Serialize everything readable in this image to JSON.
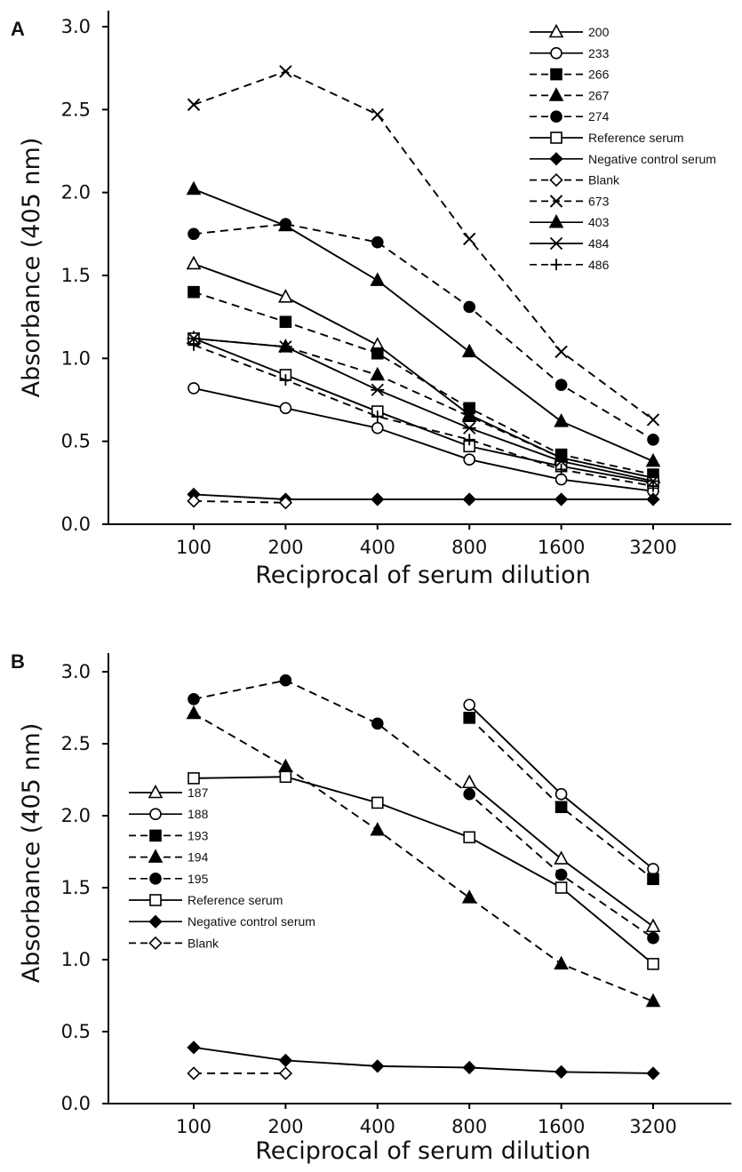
{
  "chart_data": [
    {
      "panel": "A",
      "type": "line",
      "x_scale": "log2",
      "categories": [
        "100",
        "200",
        "400",
        "800",
        "1600",
        "3200"
      ],
      "x": [
        100,
        200,
        400,
        800,
        1600,
        3200
      ],
      "xlabel": "Reciprocal of serum dilution",
      "ylabel": "Absorbance (405 nm)",
      "ylim": [
        0.0,
        3.0
      ],
      "yticks": [
        "0.0",
        "0.5",
        "1.0",
        "1.5",
        "2.0",
        "2.5",
        "3.0"
      ],
      "grid": false,
      "legend_position": "top-right",
      "series": [
        {
          "name": "200",
          "marker": "triangle-open",
          "dash": "solid",
          "values": [
            1.57,
            1.37,
            1.08,
            0.66,
            0.4,
            0.28
          ]
        },
        {
          "name": "233",
          "marker": "circle-open",
          "dash": "solid",
          "values": [
            0.82,
            0.7,
            0.58,
            0.39,
            0.27,
            0.2
          ]
        },
        {
          "name": "266",
          "marker": "square-filled",
          "dash": "dashed",
          "values": [
            1.4,
            1.22,
            1.03,
            0.7,
            0.42,
            0.3
          ]
        },
        {
          "name": "267",
          "marker": "triangle-filled",
          "dash": "dashed",
          "values": [
            1.12,
            1.07,
            0.9,
            0.65,
            0.4,
            0.28
          ]
        },
        {
          "name": "274",
          "marker": "circle-filled",
          "dash": "dashed",
          "values": [
            1.75,
            1.81,
            1.7,
            1.31,
            0.84,
            0.51
          ]
        },
        {
          "name": "Reference serum",
          "marker": "square-open",
          "dash": "solid",
          "values": [
            1.12,
            0.9,
            0.68,
            0.47,
            0.35,
            0.25
          ]
        },
        {
          "name": "Negative control serum",
          "marker": "diamond-filled",
          "dash": "solid",
          "values": [
            0.18,
            0.15,
            0.15,
            0.15,
            0.15,
            0.15
          ]
        },
        {
          "name": "Blank",
          "marker": "diamond-open",
          "dash": "dashed",
          "values": [
            0.14,
            0.13,
            null,
            null,
            null,
            null
          ]
        },
        {
          "name": "673",
          "marker": "x",
          "dash": "dashed",
          "values": [
            2.53,
            2.73,
            2.47,
            1.72,
            1.04,
            0.63
          ]
        },
        {
          "name": "403",
          "marker": "triangle-filled",
          "dash": "solid",
          "values": [
            2.02,
            1.8,
            1.47,
            1.04,
            0.62,
            0.38
          ]
        },
        {
          "name": "484",
          "marker": "asterisk",
          "dash": "solid",
          "values": [
            1.12,
            1.07,
            0.81,
            0.58,
            0.38,
            0.26
          ]
        },
        {
          "name": "486",
          "marker": "plus",
          "dash": "dashed",
          "values": [
            1.08,
            0.87,
            0.65,
            0.51,
            0.33,
            0.23
          ]
        }
      ]
    },
    {
      "panel": "B",
      "type": "line",
      "x_scale": "log2",
      "categories": [
        "100",
        "200",
        "400",
        "800",
        "1600",
        "3200"
      ],
      "x": [
        100,
        200,
        400,
        800,
        1600,
        3200
      ],
      "xlabel": "Reciprocal of serum dilution",
      "ylabel": "Absorbance (405 nm)",
      "ylim": [
        0.0,
        3.0
      ],
      "yticks": [
        "0.0",
        "0.5",
        "1.0",
        "1.5",
        "2.0",
        "2.5",
        "3.0"
      ],
      "grid": false,
      "legend_position": "middle-left",
      "series": [
        {
          "name": "187",
          "marker": "triangle-open",
          "dash": "solid",
          "values": [
            null,
            null,
            null,
            2.23,
            1.7,
            1.23
          ]
        },
        {
          "name": "188",
          "marker": "circle-open",
          "dash": "solid",
          "values": [
            null,
            null,
            null,
            2.77,
            2.15,
            1.63
          ]
        },
        {
          "name": "193",
          "marker": "square-filled",
          "dash": "dashed",
          "values": [
            null,
            null,
            null,
            2.68,
            2.06,
            1.56
          ]
        },
        {
          "name": "194",
          "marker": "triangle-filled",
          "dash": "dashed",
          "values": [
            2.71,
            2.34,
            1.9,
            1.43,
            0.97,
            0.71
          ]
        },
        {
          "name": "195",
          "marker": "circle-filled",
          "dash": "dashed",
          "values": [
            2.81,
            2.94,
            2.64,
            2.15,
            1.59,
            1.15
          ]
        },
        {
          "name": "Reference serum",
          "marker": "square-open",
          "dash": "solid",
          "values": [
            2.26,
            2.27,
            2.09,
            1.85,
            1.5,
            0.97
          ]
        },
        {
          "name": "Negative control serum",
          "marker": "diamond-filled",
          "dash": "solid",
          "values": [
            0.39,
            0.3,
            0.26,
            0.25,
            0.22,
            0.21
          ]
        },
        {
          "name": "Blank",
          "marker": "diamond-open",
          "dash": "dashed",
          "values": [
            0.21,
            0.21,
            null,
            null,
            null,
            null
          ]
        }
      ]
    }
  ]
}
